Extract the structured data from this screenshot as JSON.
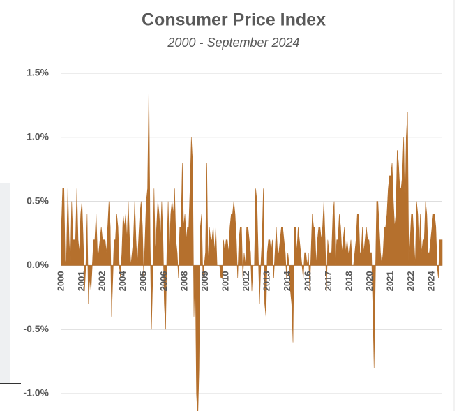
{
  "chart_data": {
    "type": "area",
    "title": "Consumer Price Index",
    "subtitle": "2000 - September 2024",
    "color": "#b5702d",
    "grid": true,
    "ylim": [
      -1.13,
      1.5
    ],
    "yticks": [
      {
        "value": -1.0,
        "label": "-1.0%"
      },
      {
        "value": -0.5,
        "label": "-0.5%"
      },
      {
        "value": 0,
        "label": "0.0%"
      },
      {
        "value": 0.5,
        "label": "0.5%"
      },
      {
        "value": 1.0,
        "label": "1.0%"
      },
      {
        "value": 1.5,
        "label": "1.5%"
      }
    ],
    "categories": [
      "2000",
      null,
      null,
      null,
      null,
      null,
      null,
      null,
      null,
      null,
      null,
      null,
      null,
      null,
      null,
      null,
      "2001",
      null,
      null,
      null,
      null,
      null,
      null,
      null,
      null,
      null,
      null,
      null,
      null,
      null,
      null,
      null,
      "2002",
      null,
      null,
      null,
      null,
      null,
      null,
      null,
      null,
      null,
      null,
      null,
      null,
      null,
      null,
      null,
      "2004",
      null,
      null,
      null,
      null,
      null,
      null,
      null,
      null,
      null,
      null,
      null,
      null,
      null,
      null,
      null,
      "2005",
      null,
      null,
      null,
      null,
      null,
      null,
      null,
      null,
      null,
      null,
      null,
      null,
      null,
      null,
      null,
      "2006",
      null,
      null,
      null,
      null,
      null,
      null,
      null,
      null,
      null,
      null,
      null,
      null,
      null,
      null,
      null,
      "2008",
      null,
      null,
      null,
      null,
      null,
      null,
      null,
      null,
      null,
      null,
      null,
      null,
      null,
      null,
      null,
      "2009",
      null,
      null,
      null,
      null,
      null,
      null,
      null,
      null,
      null,
      null,
      null,
      null,
      null,
      null,
      null,
      "2010",
      null,
      null,
      null,
      null,
      null,
      null,
      null,
      null,
      null,
      null,
      null,
      null,
      null,
      null,
      null,
      "2012",
      null,
      null,
      null,
      null,
      null,
      null,
      null,
      null,
      null,
      null,
      null,
      null,
      null,
      null,
      null,
      "2013",
      null,
      null,
      null,
      null,
      null,
      null,
      null,
      null,
      null,
      null,
      null,
      null,
      null,
      null,
      null,
      "2014",
      null,
      null,
      null,
      null,
      null,
      null,
      null,
      null,
      null,
      null,
      null,
      null,
      null,
      null,
      null,
      "2016",
      null,
      null,
      null,
      null,
      null,
      null,
      null,
      null,
      null,
      null,
      null,
      null,
      null,
      null,
      null,
      "2017",
      null,
      null,
      null,
      null,
      null,
      null,
      null,
      null,
      null,
      null,
      null,
      null,
      null,
      null,
      null,
      "2018",
      null,
      null,
      null,
      null,
      null,
      null,
      null,
      null,
      null,
      null,
      null,
      null,
      null,
      null,
      null,
      "2020",
      null,
      null,
      null,
      null,
      null,
      null,
      null,
      null,
      null,
      null,
      null,
      null,
      null,
      null,
      null,
      "2021",
      null,
      null,
      null,
      null,
      null,
      null,
      null,
      null,
      null,
      null,
      null,
      null,
      null,
      null,
      null,
      "2022",
      null,
      null,
      null,
      null,
      null,
      null,
      null,
      null,
      null,
      null,
      null,
      null,
      null,
      null,
      null,
      "2024",
      null,
      null,
      null,
      null,
      null,
      null,
      null,
      null
    ],
    "values": [
      0.3,
      0.6,
      0.6,
      0.0,
      0.1,
      0.6,
      0.2,
      0.0,
      0.5,
      0.2,
      0.2,
      0.2,
      0.6,
      0.2,
      0.1,
      0.4,
      0.5,
      0.2,
      -0.2,
      0.0,
      0.4,
      -0.3,
      -0.1,
      -0.2,
      0.0,
      0.2,
      0.2,
      0.4,
      0.1,
      0.1,
      0.2,
      0.3,
      0.2,
      0.2,
      0.2,
      0.1,
      0.3,
      0.5,
      0.3,
      -0.4,
      -0.1,
      0.2,
      0.2,
      0.4,
      0.3,
      0.0,
      -0.1,
      0.1,
      0.4,
      0.3,
      0.4,
      0.2,
      0.5,
      0.2,
      0.0,
      0.1,
      0.2,
      0.5,
      0.2,
      0.0,
      0.2,
      0.4,
      0.5,
      0.3,
      -0.1,
      0.2,
      0.5,
      0.6,
      1.4,
      0.2,
      -0.5,
      -0.1,
      0.6,
      0.1,
      0.3,
      0.5,
      0.4,
      0.2,
      0.5,
      0.2,
      -0.3,
      -0.5,
      0.1,
      0.5,
      0.1,
      0.4,
      0.5,
      0.4,
      0.6,
      0.2,
      0.1,
      -0.1,
      0.3,
      0.3,
      0.8,
      0.3,
      0.4,
      0.2,
      0.3,
      0.3,
      0.6,
      1.0,
      0.8,
      -0.4,
      0.0,
      -1.0,
      -1.2,
      -0.8,
      0.3,
      0.4,
      -0.1,
      0.0,
      0.1,
      0.8,
      0.0,
      0.3,
      0.2,
      0.2,
      0.3,
      0.1,
      0.3,
      0.0,
      0.0,
      0.0,
      -0.1,
      -0.1,
      0.2,
      0.1,
      0.2,
      0.2,
      0.1,
      0.3,
      0.4,
      0.4,
      0.5,
      0.4,
      0.2,
      -0.1,
      0.2,
      0.3,
      0.3,
      -0.1,
      0.1,
      0.0,
      0.3,
      0.3,
      0.2,
      0.1,
      -0.2,
      0.0,
      0.0,
      0.6,
      0.5,
      0.1,
      -0.3,
      0.0,
      0.2,
      0.6,
      -0.3,
      -0.4,
      0.1,
      0.2,
      0.2,
      0.1,
      0.2,
      -0.1,
      0.1,
      0.3,
      0.1,
      0.1,
      0.2,
      0.3,
      0.3,
      0.2,
      0.1,
      -0.1,
      0.1,
      0.0,
      -0.2,
      -0.3,
      -0.6,
      0.3,
      0.3,
      0.1,
      0.3,
      0.2,
      0.1,
      0.0,
      -0.1,
      0.1,
      0.1,
      0.0,
      0.1,
      -0.2,
      0.1,
      0.4,
      0.3,
      0.3,
      0.0,
      0.2,
      0.3,
      0.3,
      0.2,
      0.3,
      0.5,
      0.2,
      -0.2,
      0.2,
      0.1,
      0.1,
      0.1,
      0.4,
      0.5,
      0.0,
      0.2,
      0.2,
      0.4,
      0.3,
      0.1,
      0.2,
      0.3,
      0.1,
      0.2,
      0.1,
      0.1,
      0.2,
      0.0,
      0.0,
      0.1,
      0.2,
      0.4,
      0.4,
      0.1,
      0.1,
      0.3,
      0.1,
      0.2,
      0.3,
      0.2,
      0.2,
      0.1,
      0.1,
      -0.3,
      -0.8,
      -0.1,
      0.5,
      0.5,
      0.3,
      0.1,
      0.0,
      0.1,
      0.3,
      0.3,
      0.4,
      0.6,
      0.7,
      0.7,
      0.8,
      0.5,
      0.3,
      0.4,
      0.9,
      0.8,
      0.6,
      0.6,
      0.7,
      1.0,
      0.4,
      1.0,
      1.2,
      0.0,
      0.2,
      0.4,
      0.4,
      0.2,
      0.0,
      0.5,
      0.4,
      0.1,
      0.4,
      0.1,
      0.2,
      0.2,
      0.5,
      0.4,
      0.1,
      0.1,
      0.2,
      0.3,
      0.4,
      0.4,
      0.3,
      0.0,
      -0.1,
      0.2,
      0.2,
      0.2
    ]
  }
}
